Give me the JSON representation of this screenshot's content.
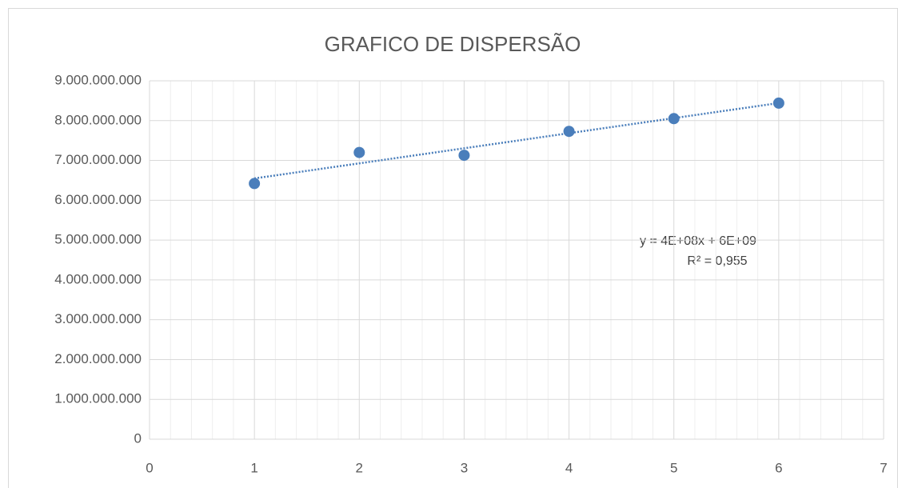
{
  "chart_data": {
    "type": "scatter",
    "title": "GRAFICO DE DISPERSÃO",
    "x": [
      1,
      2,
      3,
      4,
      5,
      6
    ],
    "series": [
      {
        "color": "#4a7ebb",
        "values": [
          6420000000,
          7200000000,
          7130000000,
          7730000000,
          8050000000,
          8440000000
        ]
      }
    ],
    "trendline": true,
    "annotations": [
      "y = 4E+08x + 6E+09",
      "R² = 0,955"
    ],
    "xlim": [
      0,
      7
    ],
    "xticks": [
      0,
      1,
      2,
      3,
      4,
      5,
      6,
      7
    ],
    "ylim": [
      0,
      9000000000
    ],
    "yticks": [
      0,
      {
        "value": 1000000000,
        "label": "1.000.000.000"
      },
      {
        "value": 2000000000,
        "label": "2.000.000.000"
      },
      {
        "value": 3000000000,
        "label": "3.000.000.000"
      },
      {
        "value": 4000000000,
        "label": "4.000.000.000"
      },
      {
        "value": 5000000000,
        "label": "5.000.000.000"
      },
      {
        "value": 6000000000,
        "label": "6.000.000.000"
      },
      {
        "value": 7000000000,
        "label": "7.000.000.000"
      },
      {
        "value": 8000000000,
        "label": "8.000.000.000"
      },
      {
        "value": 9000000000,
        "label": "9.000.000.000"
      }
    ],
    "grid": true,
    "x_minor_divisions": 5
  }
}
